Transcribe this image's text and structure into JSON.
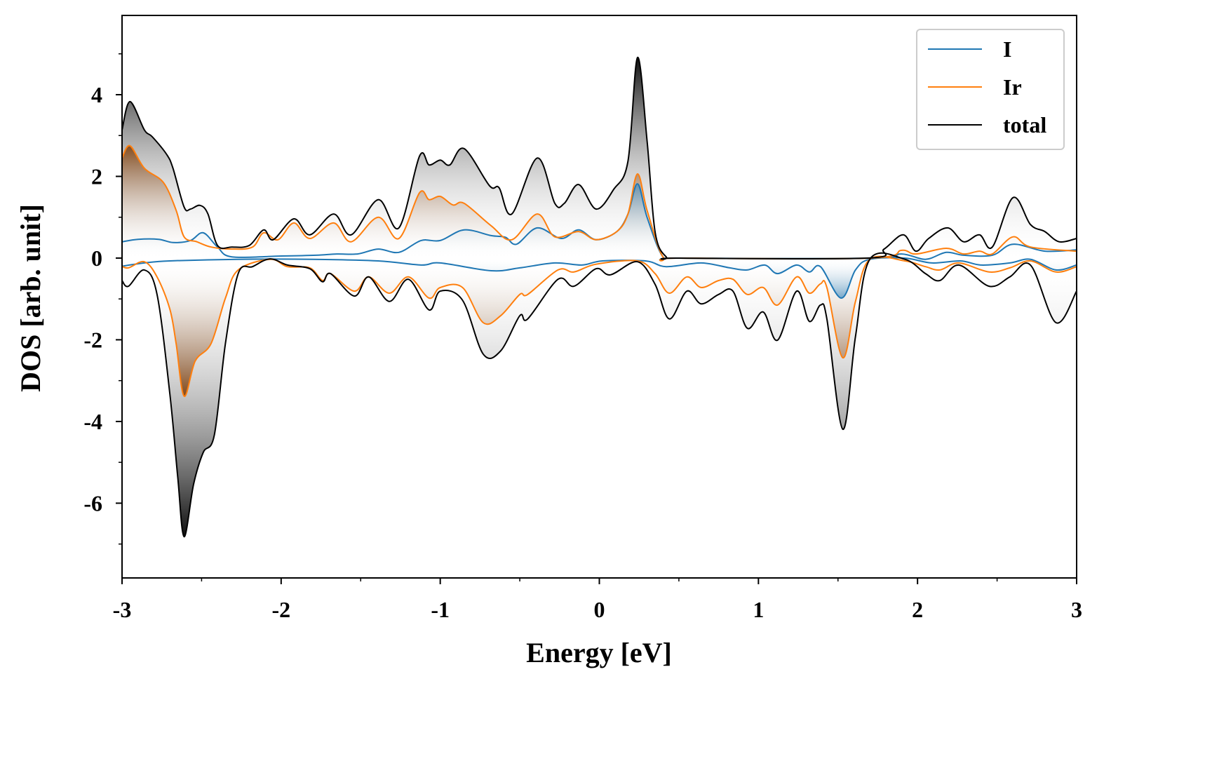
{
  "chart_data": {
    "type": "line",
    "title": "",
    "xlabel": "Energy [eV]",
    "ylabel": "DOS [arb. unit]",
    "xlim": [
      -3,
      3
    ],
    "ylim": [
      -7.83,
      5.94
    ],
    "xticks": [
      -3,
      -2,
      -1,
      0,
      1,
      2,
      3
    ],
    "xtick_labels": [
      "-3",
      "-2",
      "-1",
      "0",
      "1",
      "2",
      "3"
    ],
    "yticks": [
      -6,
      -4,
      -2,
      0,
      2,
      4
    ],
    "ytick_labels": [
      "-6",
      "-4",
      "-2",
      "0",
      "2",
      "4"
    ],
    "grid": false,
    "legend_position": "top-right",
    "series": [
      {
        "name": "I",
        "color": "#1f77b4",
        "fill": "#1f77b4",
        "up": [
          [
            -3,
            0.4
          ],
          [
            -2.9,
            0.46
          ],
          [
            -2.77,
            0.46
          ],
          [
            -2.68,
            0.38
          ],
          [
            -2.57,
            0.43
          ],
          [
            -2.49,
            0.62
          ],
          [
            -2.4,
            0.27
          ],
          [
            -2.31,
            0.03
          ],
          [
            -2,
            0.05
          ],
          [
            -1.78,
            0.07
          ],
          [
            -1.65,
            0.1
          ],
          [
            -1.52,
            0.1
          ],
          [
            -1.39,
            0.22
          ],
          [
            -1.26,
            0.14
          ],
          [
            -1.12,
            0.43
          ],
          [
            -1,
            0.43
          ],
          [
            -0.85,
            0.69
          ],
          [
            -0.68,
            0.55
          ],
          [
            -0.59,
            0.51
          ],
          [
            -0.52,
            0.34
          ],
          [
            -0.39,
            0.74
          ],
          [
            -0.24,
            0.48
          ],
          [
            -0.13,
            0.69
          ],
          [
            -0.02,
            0.45
          ],
          [
            0.11,
            0.65
          ],
          [
            0.18,
            1.08
          ],
          [
            0.24,
            1.82
          ],
          [
            0.3,
            1.0
          ],
          [
            0.4,
            0.03
          ],
          [
            0.5,
            0
          ],
          [
            1.7,
            0
          ],
          [
            1.9,
            0.1
          ],
          [
            2.05,
            -0.03
          ],
          [
            2.18,
            0.14
          ],
          [
            2.29,
            0.07
          ],
          [
            2.47,
            0.07
          ],
          [
            2.6,
            0.34
          ],
          [
            2.8,
            0.17
          ],
          [
            3,
            0.2
          ]
        ],
        "down": [
          [
            -3,
            -0.2
          ],
          [
            -2.86,
            -0.12
          ],
          [
            -2.7,
            -0.07
          ],
          [
            -2.27,
            -0.03
          ],
          [
            -1.8,
            -0.03
          ],
          [
            -1.39,
            -0.07
          ],
          [
            -1.12,
            -0.17
          ],
          [
            -1,
            -0.12
          ],
          [
            -0.68,
            -0.31
          ],
          [
            -0.5,
            -0.24
          ],
          [
            -0.28,
            -0.12
          ],
          [
            -0.11,
            -0.17
          ],
          [
            0.02,
            -0.07
          ],
          [
            0.29,
            -0.07
          ],
          [
            0.42,
            -0.21
          ],
          [
            0.64,
            -0.12
          ],
          [
            0.82,
            -0.24
          ],
          [
            0.93,
            -0.29
          ],
          [
            1.04,
            -0.17
          ],
          [
            1.12,
            -0.38
          ],
          [
            1.24,
            -0.17
          ],
          [
            1.32,
            -0.34
          ],
          [
            1.39,
            -0.21
          ],
          [
            1.52,
            -0.98
          ],
          [
            1.61,
            -0.29
          ],
          [
            1.7,
            -0.03
          ],
          [
            1.92,
            0
          ],
          [
            2.09,
            -0.12
          ],
          [
            2.27,
            -0.07
          ],
          [
            2.4,
            -0.17
          ],
          [
            2.58,
            -0.12
          ],
          [
            2.71,
            -0.03
          ],
          [
            2.87,
            -0.29
          ],
          [
            3,
            -0.17
          ]
        ]
      },
      {
        "name": "Ir",
        "color": "#ff7f0e",
        "fill": "#8b4513",
        "up": [
          [
            -3,
            2.45
          ],
          [
            -2.95,
            2.75
          ],
          [
            -2.86,
            2.2
          ],
          [
            -2.74,
            1.85
          ],
          [
            -2.66,
            1.17
          ],
          [
            -2.61,
            0.52
          ],
          [
            -2.53,
            0.4
          ],
          [
            -2.44,
            0.27
          ],
          [
            -2.31,
            0.22
          ],
          [
            -2.18,
            0.27
          ],
          [
            -2.11,
            0.62
          ],
          [
            -2.02,
            0.45
          ],
          [
            -1.92,
            0.86
          ],
          [
            -1.82,
            0.48
          ],
          [
            -1.67,
            0.86
          ],
          [
            -1.56,
            0.4
          ],
          [
            -1.39,
            1.0
          ],
          [
            -1.26,
            0.48
          ],
          [
            -1.13,
            1.6
          ],
          [
            -1.07,
            1.43
          ],
          [
            -1,
            1.51
          ],
          [
            -0.92,
            1.3
          ],
          [
            -0.85,
            1.34
          ],
          [
            -0.68,
            0.79
          ],
          [
            -0.55,
            0.45
          ],
          [
            -0.39,
            1.08
          ],
          [
            -0.28,
            0.52
          ],
          [
            -0.13,
            0.65
          ],
          [
            -0.02,
            0.45
          ],
          [
            0.11,
            0.65
          ],
          [
            0.18,
            1.08
          ],
          [
            0.24,
            2.06
          ],
          [
            0.3,
            1.17
          ],
          [
            0.4,
            0.03
          ],
          [
            0.5,
            0
          ],
          [
            1.7,
            0
          ],
          [
            1.9,
            0.19
          ],
          [
            1.99,
            0.1
          ],
          [
            2.18,
            0.24
          ],
          [
            2.29,
            0.1
          ],
          [
            2.39,
            0.17
          ],
          [
            2.47,
            0.1
          ],
          [
            2.6,
            0.52
          ],
          [
            2.71,
            0.27
          ],
          [
            3,
            0.17
          ]
        ],
        "down": [
          [
            -3,
            -0.2
          ],
          [
            -2.96,
            -0.24
          ],
          [
            -2.86,
            -0.09
          ],
          [
            -2.78,
            -0.46
          ],
          [
            -2.7,
            -1.24
          ],
          [
            -2.66,
            -2.09
          ],
          [
            -2.61,
            -3.38
          ],
          [
            -2.54,
            -2.52
          ],
          [
            -2.44,
            -2.09
          ],
          [
            -2.35,
            -0.98
          ],
          [
            -2.27,
            -0.29
          ],
          [
            -2.07,
            -0.03
          ],
          [
            -1.96,
            -0.21
          ],
          [
            -1.82,
            -0.24
          ],
          [
            -1.74,
            -0.55
          ],
          [
            -1.69,
            -0.38
          ],
          [
            -1.54,
            -0.81
          ],
          [
            -1.45,
            -0.46
          ],
          [
            -1.32,
            -0.86
          ],
          [
            -1.2,
            -0.46
          ],
          [
            -1.07,
            -0.98
          ],
          [
            -1,
            -0.72
          ],
          [
            -0.86,
            -0.72
          ],
          [
            -0.73,
            -1.58
          ],
          [
            -0.62,
            -1.41
          ],
          [
            -0.5,
            -0.89
          ],
          [
            -0.45,
            -0.89
          ],
          [
            -0.26,
            -0.29
          ],
          [
            -0.16,
            -0.34
          ],
          [
            -0.02,
            -0.15
          ],
          [
            0.24,
            -0.07
          ],
          [
            0.35,
            -0.38
          ],
          [
            0.44,
            -0.86
          ],
          [
            0.55,
            -0.46
          ],
          [
            0.64,
            -0.72
          ],
          [
            0.75,
            -0.55
          ],
          [
            0.84,
            -0.52
          ],
          [
            0.93,
            -0.89
          ],
          [
            1.03,
            -0.72
          ],
          [
            1.12,
            -1.15
          ],
          [
            1.24,
            -0.46
          ],
          [
            1.32,
            -0.86
          ],
          [
            1.39,
            -0.63
          ],
          [
            1.43,
            -0.72
          ],
          [
            1.53,
            -2.44
          ],
          [
            1.61,
            -1.06
          ],
          [
            1.7,
            -0.03
          ],
          [
            1.92,
            -0.07
          ],
          [
            2.05,
            -0.21
          ],
          [
            2.14,
            -0.29
          ],
          [
            2.26,
            -0.12
          ],
          [
            2.45,
            -0.34
          ],
          [
            2.58,
            -0.24
          ],
          [
            2.71,
            -0.07
          ],
          [
            2.87,
            -0.34
          ],
          [
            3,
            -0.21
          ]
        ]
      },
      {
        "name": "total",
        "color": "#000000",
        "fill": "#000000",
        "up": [
          [
            -3,
            3.14
          ],
          [
            -2.95,
            3.83
          ],
          [
            -2.86,
            3.14
          ],
          [
            -2.81,
            2.97
          ],
          [
            -2.72,
            2.54
          ],
          [
            -2.68,
            2.2
          ],
          [
            -2.61,
            1.25
          ],
          [
            -2.57,
            1.2
          ],
          [
            -2.51,
            1.29
          ],
          [
            -2.46,
            1.08
          ],
          [
            -2.4,
            0.31
          ],
          [
            -2.31,
            0.27
          ],
          [
            -2.2,
            0.31
          ],
          [
            -2.11,
            0.69
          ],
          [
            -2.05,
            0.45
          ],
          [
            -1.92,
            0.96
          ],
          [
            -1.82,
            0.57
          ],
          [
            -1.67,
            1.08
          ],
          [
            -1.56,
            0.57
          ],
          [
            -1.39,
            1.43
          ],
          [
            -1.26,
            0.74
          ],
          [
            -1.13,
            2.5
          ],
          [
            -1.07,
            2.28
          ],
          [
            -1,
            2.4
          ],
          [
            -0.94,
            2.28
          ],
          [
            -0.85,
            2.68
          ],
          [
            -0.69,
            1.77
          ],
          [
            -0.63,
            1.72
          ],
          [
            -0.55,
            1.08
          ],
          [
            -0.39,
            2.45
          ],
          [
            -0.28,
            1.34
          ],
          [
            -0.22,
            1.34
          ],
          [
            -0.13,
            1.8
          ],
          [
            -0.02,
            1.2
          ],
          [
            0.09,
            1.68
          ],
          [
            0.18,
            2.37
          ],
          [
            0.24,
            4.91
          ],
          [
            0.3,
            2.88
          ],
          [
            0.35,
            0.65
          ],
          [
            0.42,
            0.03
          ],
          [
            0.5,
            0
          ],
          [
            1.68,
            0
          ],
          [
            1.79,
            0.22
          ],
          [
            1.91,
            0.57
          ],
          [
            1.99,
            0.17
          ],
          [
            2.07,
            0.48
          ],
          [
            2.19,
            0.74
          ],
          [
            2.29,
            0.4
          ],
          [
            2.39,
            0.57
          ],
          [
            2.47,
            0.27
          ],
          [
            2.6,
            1.48
          ],
          [
            2.71,
            0.82
          ],
          [
            2.8,
            0.65
          ],
          [
            2.89,
            0.4
          ],
          [
            3,
            0.48
          ]
        ],
        "down": [
          [
            -3,
            -0.55
          ],
          [
            -2.96,
            -0.69
          ],
          [
            -2.86,
            -0.29
          ],
          [
            -2.78,
            -0.89
          ],
          [
            -2.7,
            -3.3
          ],
          [
            -2.65,
            -5.36
          ],
          [
            -2.61,
            -6.82
          ],
          [
            -2.55,
            -5.53
          ],
          [
            -2.49,
            -4.76
          ],
          [
            -2.42,
            -4.33
          ],
          [
            -2.35,
            -2.09
          ],
          [
            -2.27,
            -0.38
          ],
          [
            -2.18,
            -0.21
          ],
          [
            -2.07,
            -0.02
          ],
          [
            -1.96,
            -0.17
          ],
          [
            -1.82,
            -0.26
          ],
          [
            -1.74,
            -0.58
          ],
          [
            -1.69,
            -0.38
          ],
          [
            -1.54,
            -0.93
          ],
          [
            -1.45,
            -0.46
          ],
          [
            -1.32,
            -1.06
          ],
          [
            -1.2,
            -0.52
          ],
          [
            -1.07,
            -1.27
          ],
          [
            -1,
            -0.81
          ],
          [
            -0.86,
            -1.03
          ],
          [
            -0.73,
            -2.35
          ],
          [
            -0.62,
            -2.27
          ],
          [
            -0.5,
            -1.41
          ],
          [
            -0.45,
            -1.49
          ],
          [
            -0.26,
            -0.52
          ],
          [
            -0.16,
            -0.69
          ],
          [
            -0.02,
            -0.26
          ],
          [
            0.07,
            -0.41
          ],
          [
            0.24,
            -0.09
          ],
          [
            0.35,
            -0.64
          ],
          [
            0.44,
            -1.49
          ],
          [
            0.55,
            -0.81
          ],
          [
            0.64,
            -1.12
          ],
          [
            0.75,
            -0.89
          ],
          [
            0.84,
            -0.81
          ],
          [
            0.93,
            -1.72
          ],
          [
            1.03,
            -1.32
          ],
          [
            1.12,
            -2.01
          ],
          [
            1.24,
            -0.81
          ],
          [
            1.32,
            -1.55
          ],
          [
            1.39,
            -1.15
          ],
          [
            1.43,
            -1.49
          ],
          [
            1.53,
            -4.19
          ],
          [
            1.61,
            -1.92
          ],
          [
            1.7,
            -0.03
          ],
          [
            1.92,
            -0.03
          ],
          [
            2.05,
            -0.38
          ],
          [
            2.14,
            -0.55
          ],
          [
            2.26,
            -0.17
          ],
          [
            2.45,
            -0.69
          ],
          [
            2.58,
            -0.46
          ],
          [
            2.71,
            -0.17
          ],
          [
            2.87,
            -1.58
          ],
          [
            3,
            -0.81
          ]
        ]
      }
    ]
  }
}
